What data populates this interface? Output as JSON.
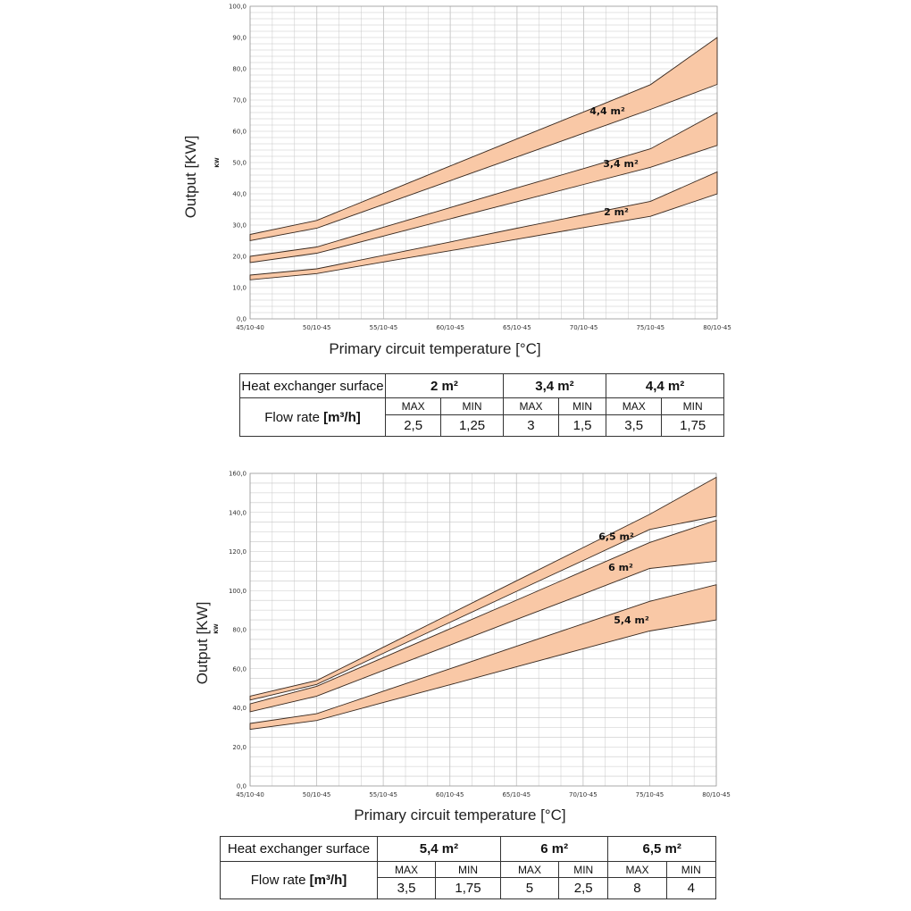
{
  "chart_data": [
    {
      "type": "area",
      "ylabel": "Output [KW]",
      "unit_label": "KW",
      "xlabel": "Primary circuit temperature [°C]",
      "x_categories": [
        "45/10-40",
        "50/10-45",
        "55/10-45",
        "60/10-45",
        "65/10-45",
        "70/10-45",
        "75/10-45",
        "80/10-45"
      ],
      "ylim": [
        0,
        100
      ],
      "y_ticks": [
        "0,0",
        "10,0",
        "20,0",
        "30,0",
        "40,0",
        "50,0",
        "60,0",
        "70,0",
        "80,0",
        "90,0",
        "100,0"
      ],
      "grid": true,
      "series": [
        {
          "name": "2 m²",
          "upper": [
            14,
            16,
            20.3,
            24.6,
            29,
            33.3,
            37.6,
            47
          ],
          "lower": [
            12.5,
            14.5,
            18.2,
            21.8,
            25.5,
            29.2,
            32.8,
            40
          ]
        },
        {
          "name": "3,4 m²",
          "upper": [
            20,
            23,
            29.3,
            35.6,
            41.9,
            48.1,
            54.4,
            66
          ],
          "lower": [
            18,
            21,
            26.5,
            32,
            37.5,
            43,
            48.5,
            55.5
          ]
        },
        {
          "name": "4,4 m²",
          "upper": [
            27,
            31.5,
            40.2,
            48.9,
            57.6,
            66.2,
            74.9,
            90
          ],
          "lower": [
            25,
            29,
            36.6,
            44.2,
            51.8,
            59.4,
            67,
            75
          ]
        }
      ]
    },
    {
      "type": "area",
      "ylabel": "Output [KW]",
      "unit_label": "KW",
      "xlabel": "Primary circuit temperature [°C]",
      "x_categories": [
        "45/10-40",
        "50/10-45",
        "55/10-45",
        "60/10-45",
        "65/10-45",
        "70/10-45",
        "75/10-45",
        "80/10-45"
      ],
      "ylim": [
        0,
        160
      ],
      "y_ticks": [
        "0,0",
        "20,0",
        "40,0",
        "60,0",
        "80,0",
        "100,0",
        "120,0",
        "140,0",
        "160,0"
      ],
      "grid": true,
      "series": [
        {
          "name": "5,4 m²",
          "upper": [
            32,
            37,
            48.5,
            60,
            71.5,
            83,
            94.5,
            103
          ],
          "lower": [
            29,
            33.5,
            42.7,
            51.8,
            61,
            70.2,
            79.3,
            85
          ]
        },
        {
          "name": "6 m²",
          "upper": [
            42,
            51,
            65.7,
            80.4,
            95.1,
            109.9,
            124.6,
            136
          ],
          "lower": [
            38,
            46,
            59.1,
            72.1,
            85.2,
            98.2,
            111.3,
            115
          ]
        },
        {
          "name": "6,5 m²",
          "upper": [
            46,
            54,
            71,
            88,
            105,
            122,
            139,
            158
          ],
          "lower": [
            44,
            52,
            67.9,
            83.7,
            99.6,
            115.4,
            131.3,
            138
          ]
        }
      ]
    }
  ],
  "tables": [
    {
      "surface_label": "Heat exchanger surface",
      "flow_label": "Flow rate",
      "flow_unit": "[m³/h]",
      "max_label": "MAX",
      "min_label": "MIN",
      "columns": [
        {
          "area": "2 m²",
          "max": "2,5",
          "min": "1,25"
        },
        {
          "area": "3,4 m²",
          "max": "3",
          "min": "1,5"
        },
        {
          "area": "4,4 m²",
          "max": "3,5",
          "min": "1,75"
        }
      ]
    },
    {
      "surface_label": "Heat exchanger surface",
      "flow_label": "Flow rate",
      "flow_unit": "[m³/h]",
      "max_label": "MAX",
      "min_label": "MIN",
      "columns": [
        {
          "area": "5,4 m²",
          "max": "3,5",
          "min": "1,75"
        },
        {
          "area": "6 m²",
          "max": "5",
          "min": "2,5"
        },
        {
          "area": "6,5 m²",
          "max": "8",
          "min": "4"
        }
      ]
    }
  ],
  "colors": {
    "band_fill": "#f9c8a6",
    "band_stroke": "#3a2a20",
    "grid": "#c8c8c8",
    "axis": "#555555"
  }
}
